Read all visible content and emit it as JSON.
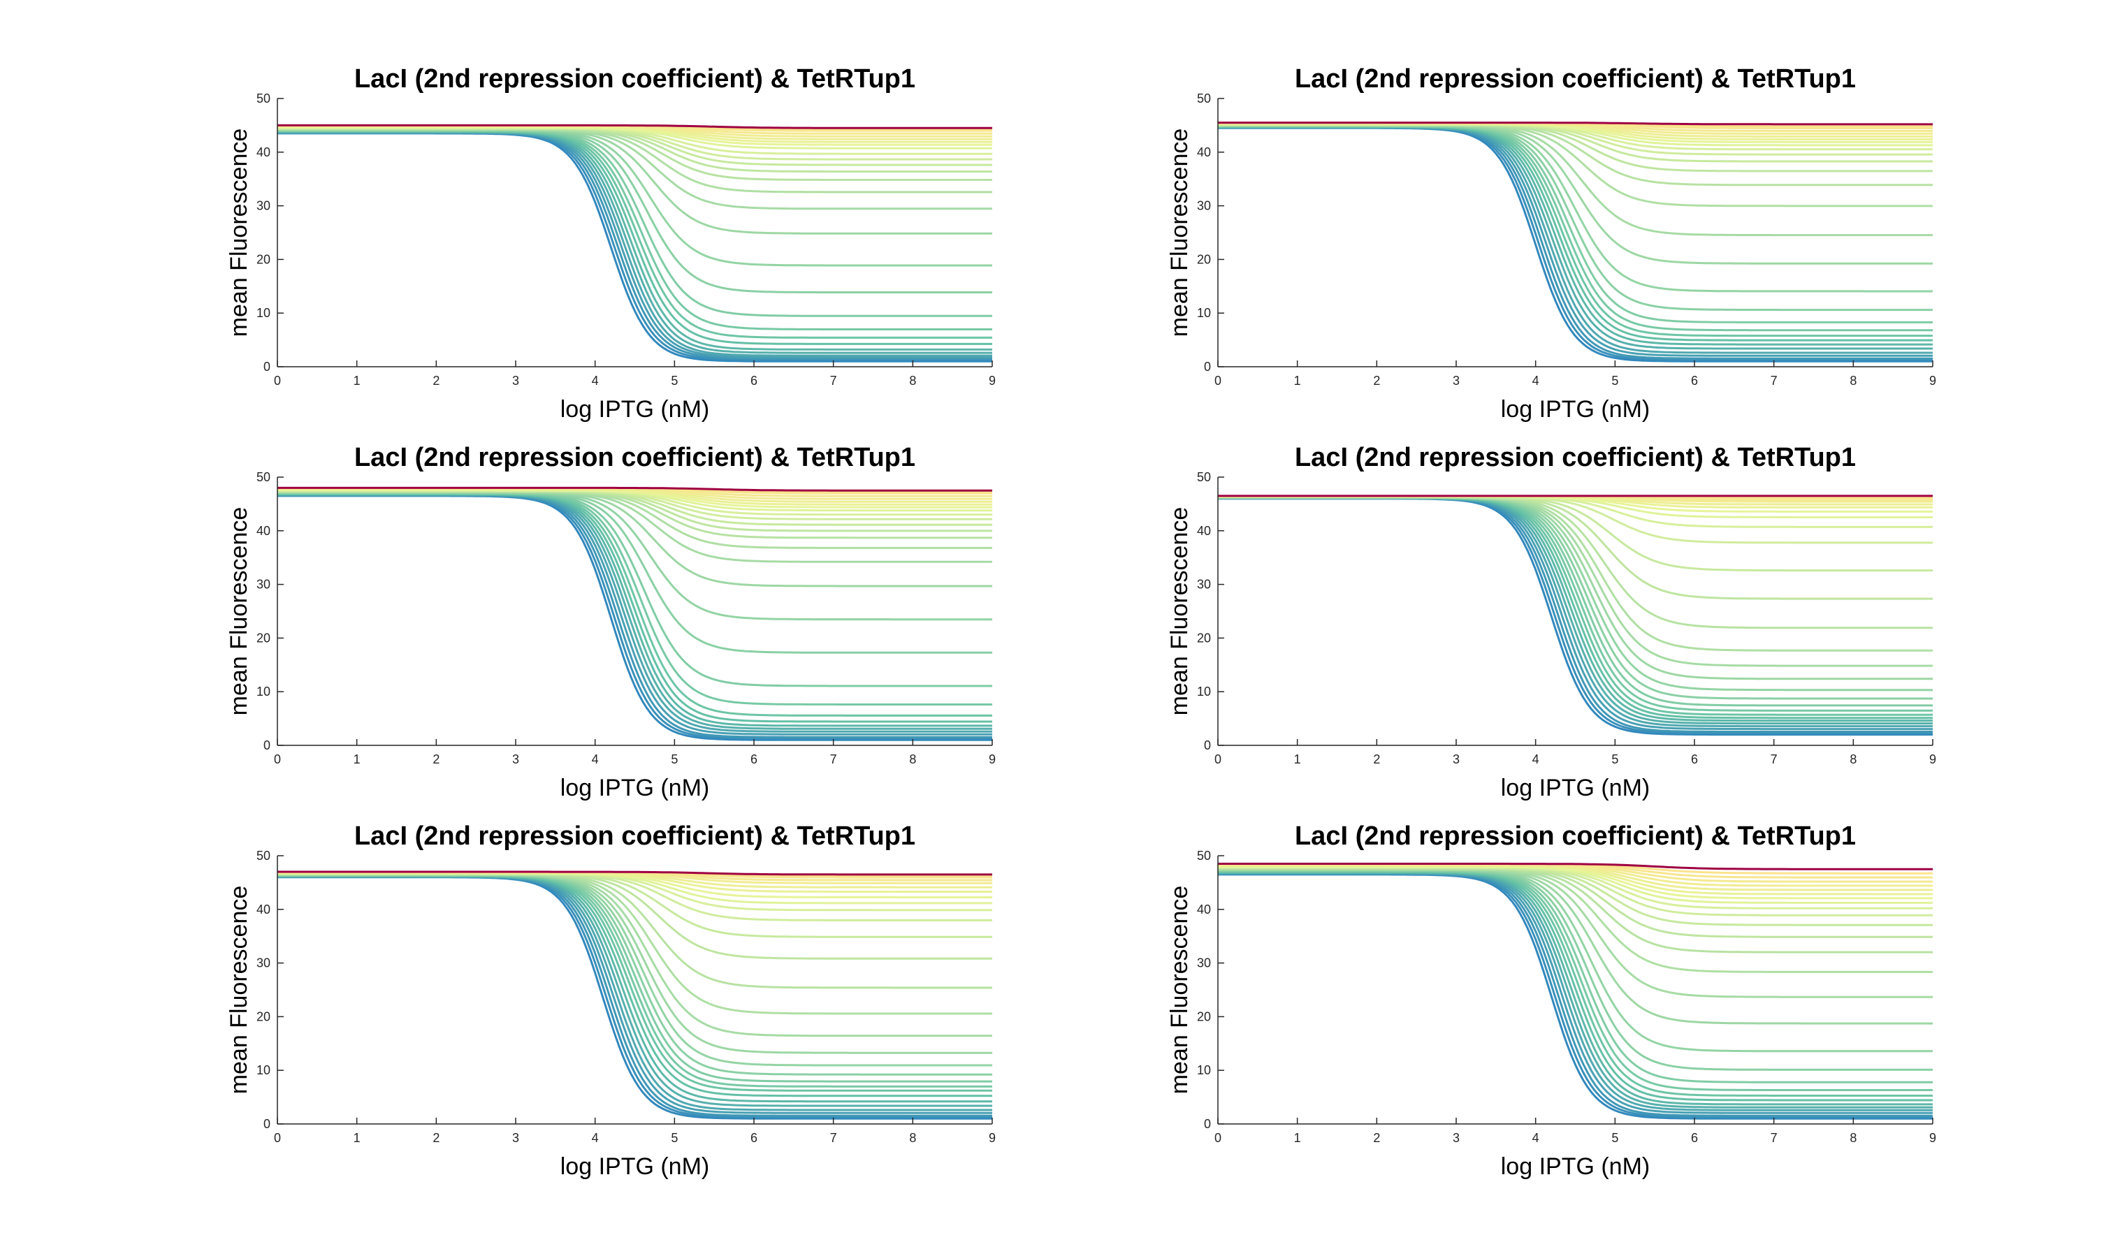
{
  "colors": {
    "low_curves": "#3b4fa0",
    "mid_curves": "#66c2a5",
    "high_curves": "#e6f598",
    "top_curve": "#9e0142",
    "axis": "#262626"
  },
  "colormap": [
    "#3288bd",
    "#66c2a5",
    "#abdda4",
    "#e6f598",
    "#fee08b",
    "#9e0142"
  ],
  "chart_data": [
    {
      "type": "line",
      "title": "LacI (2nd repression coefficient) & TetRTup1",
      "xlabel": "log IPTG (nM)",
      "ylabel": "mean Fluorescence",
      "xlim": [
        0,
        9
      ],
      "ylim": [
        0,
        50
      ],
      "xticks": [
        "0",
        "1",
        "2",
        "3",
        "4",
        "5",
        "6",
        "7",
        "8",
        "9"
      ],
      "yticks": [
        "0",
        "10",
        "20",
        "30",
        "40",
        "50"
      ],
      "grid": false,
      "legend": "none",
      "n_series": 30,
      "start_values": [
        43.5,
        45
      ],
      "plateau_values": [
        1,
        1.5,
        2,
        3,
        5,
        8,
        16.5,
        28,
        34,
        37,
        39,
        41,
        42,
        43,
        44,
        44.5
      ],
      "midpoints": [
        4.2,
        4.4,
        4.6,
        4.8,
        5.0,
        5.2,
        5.5
      ],
      "top_value": 44.5
    },
    {
      "type": "line",
      "title": "LacI (2nd repression coefficient) & TetRTup1",
      "xlabel": "log IPTG (nM)",
      "ylabel": "mean Fluorescence",
      "xlim": [
        0,
        9
      ],
      "ylim": [
        0,
        50
      ],
      "xticks": [
        "0",
        "1",
        "2",
        "3",
        "4",
        "5",
        "6",
        "7",
        "8",
        "9"
      ],
      "yticks": [
        "0",
        "10",
        "20",
        "30",
        "40",
        "50"
      ],
      "grid": false,
      "legend": "none",
      "n_series": 30,
      "start_values": [
        44.5,
        45.5
      ],
      "plateau_values": [
        1,
        1.5,
        2.5,
        4,
        5.5,
        7.5,
        12,
        22,
        32.5,
        37.5,
        40,
        41.5,
        42.5,
        43.5,
        44.5,
        45.2
      ],
      "midpoints": [
        4.0,
        4.2,
        4.4,
        4.6,
        4.8,
        5.0,
        5.3
      ],
      "top_value": 45
    },
    {
      "type": "line",
      "title": "LacI (2nd repression coefficient) & TetRTup1",
      "xlabel": "log IPTG (nM)",
      "ylabel": "mean Fluorescence",
      "xlim": [
        0,
        9
      ],
      "ylim": [
        0,
        50
      ],
      "xticks": [
        "0",
        "1",
        "2",
        "3",
        "4",
        "5",
        "6",
        "7",
        "8",
        "9"
      ],
      "yticks": [
        "0",
        "10",
        "20",
        "30",
        "40",
        "50"
      ],
      "grid": false,
      "legend": "none",
      "n_series": 30,
      "start_values": [
        46.5,
        48
      ],
      "plateau_values": [
        1,
        1.5,
        2.5,
        3.5,
        5,
        9,
        21,
        33,
        38,
        40.5,
        42.5,
        44,
        45,
        46,
        47,
        47.5
      ],
      "midpoints": [
        4.2,
        4.4,
        4.6,
        4.8,
        5.0,
        5.2,
        5.5
      ],
      "top_value": 47.5
    },
    {
      "type": "line",
      "title": "LacI (2nd repression coefficient) & TetRTup1",
      "xlabel": "log IPTG (nM)",
      "ylabel": "mean Fluorescence",
      "xlim": [
        0,
        9
      ],
      "ylim": [
        0,
        50
      ],
      "xticks": [
        "0",
        "1",
        "2",
        "3",
        "4",
        "5",
        "6",
        "7",
        "8",
        "9"
      ],
      "yticks": [
        "0",
        "10",
        "20",
        "30",
        "40",
        "50"
      ],
      "grid": false,
      "legend": "none",
      "n_series": 30,
      "start_values": [
        46,
        46.5
      ],
      "plateau_values": [
        2,
        2.5,
        3.5,
        4.5,
        5.5,
        7,
        9.5,
        13.5,
        19,
        29.5,
        39.5,
        43,
        44.5,
        45.5,
        46,
        46.5
      ],
      "midpoints": [
        4.2,
        4.4,
        4.6,
        4.8,
        5.0,
        5.2,
        5.5
      ],
      "top_value": 46.5
    },
    {
      "type": "line",
      "title": "LacI (2nd repression coefficient) & TetRTup1",
      "xlabel": "log IPTG (nM)",
      "ylabel": "mean Fluorescence",
      "xlim": [
        0,
        9
      ],
      "ylim": [
        0,
        50
      ],
      "xticks": [
        "0",
        "1",
        "2",
        "3",
        "4",
        "5",
        "6",
        "7",
        "8",
        "9"
      ],
      "yticks": [
        "0",
        "10",
        "20",
        "30",
        "40",
        "50"
      ],
      "grid": false,
      "legend": "none",
      "n_series": 30,
      "start_values": [
        46,
        47
      ],
      "plateau_values": [
        1,
        1.5,
        2.5,
        4,
        6,
        7.5,
        10,
        14.5,
        22.5,
        33,
        39,
        41.5,
        43.5,
        45,
        46,
        46.5
      ],
      "midpoints": [
        4.1,
        4.3,
        4.5,
        4.7,
        4.9,
        5.1,
        5.4
      ],
      "top_value": 46.5
    },
    {
      "type": "line",
      "title": "LacI (2nd repression coefficient) & TetRTup1",
      "xlabel": "log IPTG (nM)",
      "ylabel": "mean Fluorescence",
      "xlim": [
        0,
        9
      ],
      "ylim": [
        0,
        50
      ],
      "xticks": [
        "0",
        "1",
        "2",
        "3",
        "4",
        "5",
        "6",
        "7",
        "8",
        "9"
      ],
      "yticks": [
        "0",
        "10",
        "20",
        "30",
        "40",
        "50"
      ],
      "grid": false,
      "legend": "none",
      "n_series": 30,
      "start_values": [
        46.5,
        48.5
      ],
      "plateau_values": [
        1,
        1.5,
        2.5,
        3.5,
        5,
        7,
        11.5,
        21.5,
        30.5,
        36,
        39.5,
        41.5,
        43,
        44.5,
        46,
        47.5
      ],
      "midpoints": [
        4.2,
        4.4,
        4.6,
        4.8,
        5.0,
        5.2,
        5.5
      ],
      "top_value": 48
    }
  ]
}
